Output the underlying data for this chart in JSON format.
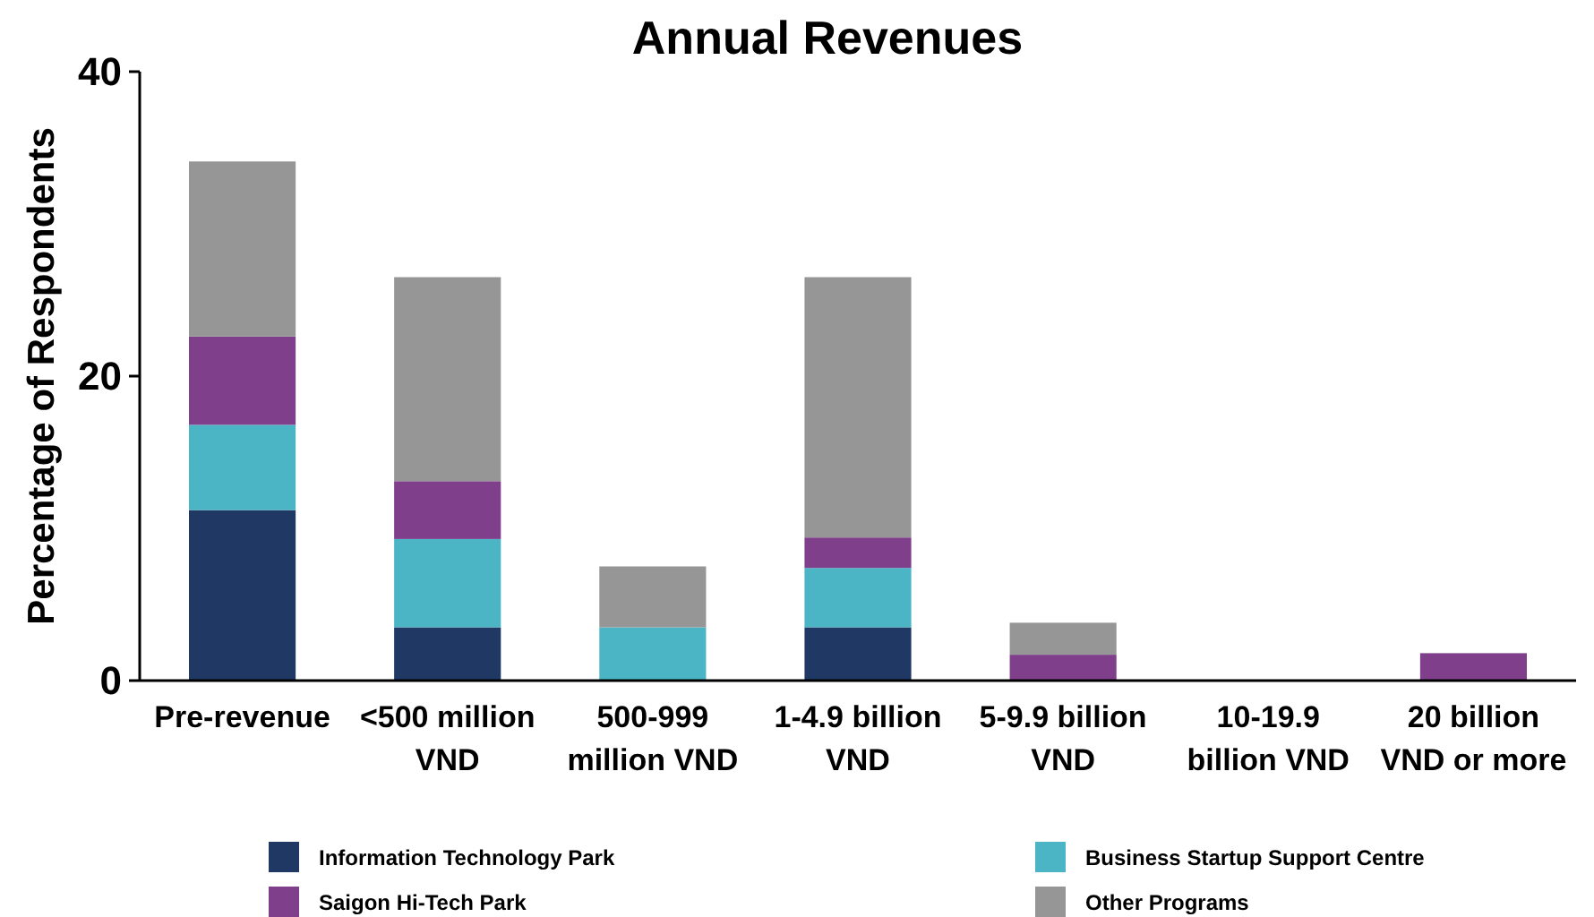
{
  "chart_data": {
    "type": "bar",
    "title": "Annual Revenues",
    "ylabel": "Percentage of Respondents",
    "stacked": true,
    "categories": [
      "Pre-revenue",
      "<500 million VND",
      "500-999 million VND",
      "1-4.9 billion VND",
      "5-9.9 billion VND",
      "10-19.9 billion VND",
      "20 billion VND or more"
    ],
    "series": [
      {
        "name": "Information Technology Park",
        "color": "#1f3864",
        "values": [
          11.2,
          3.5,
          0,
          3.5,
          0,
          0,
          0
        ]
      },
      {
        "name": "Business Startup Support Centre",
        "color": "#4bb5c5",
        "values": [
          5.6,
          5.8,
          3.5,
          3.9,
          0,
          0,
          0
        ]
      },
      {
        "name": "Saigon Hi-Tech Park",
        "color": "#7f3f8a",
        "values": [
          5.8,
          3.8,
          0,
          2.0,
          1.7,
          0,
          1.8
        ]
      },
      {
        "name": "Other Programs",
        "color": "#969696",
        "values": [
          11.5,
          13.4,
          4.0,
          17.1,
          2.1,
          0,
          0
        ]
      }
    ],
    "ylim": [
      0,
      40
    ],
    "yticks": [
      0,
      20,
      40
    ],
    "grid": false,
    "legend": "bottom"
  }
}
